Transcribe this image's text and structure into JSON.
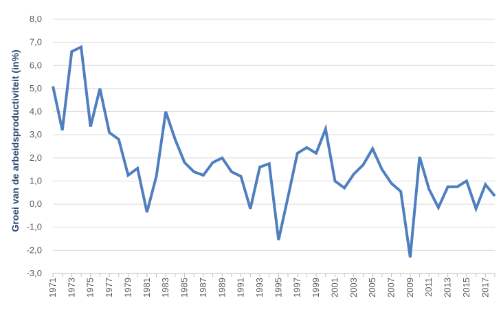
{
  "chart_data": {
    "type": "line",
    "ylabel": "Groei van de arbeidsproductiviteit (in%)",
    "xlabel": "",
    "ylim": [
      -3.0,
      8.0
    ],
    "yticks": [
      "-3,0",
      "-2,0",
      "-1,0",
      "0,0",
      "1,0",
      "2,0",
      "3,0",
      "4,0",
      "5,0",
      "6,0",
      "7,0",
      "8,0"
    ],
    "xticks": [
      "1971",
      "1973",
      "1975",
      "1977",
      "1979",
      "1981",
      "1983",
      "1985",
      "1987",
      "1989",
      "1991",
      "1993",
      "1995",
      "1997",
      "1999",
      "2001",
      "2003",
      "2005",
      "2007",
      "2009",
      "2011",
      "2013",
      "2015",
      "2017"
    ],
    "grid": true,
    "line_color": "#4f7fbf",
    "x": [
      1971,
      1972,
      1973,
      1974,
      1975,
      1976,
      1977,
      1978,
      1979,
      1980,
      1981,
      1982,
      1983,
      1984,
      1985,
      1986,
      1987,
      1988,
      1989,
      1990,
      1991,
      1992,
      1993,
      1994,
      1995,
      1996,
      1997,
      1998,
      1999,
      2000,
      2001,
      2002,
      2003,
      2004,
      2005,
      2006,
      2007,
      2008,
      2009,
      2010,
      2011,
      2012,
      2013,
      2014,
      2015,
      2016,
      2017,
      2018
    ],
    "values": [
      5.1,
      3.2,
      6.6,
      6.8,
      3.35,
      5.0,
      3.1,
      2.8,
      1.25,
      1.55,
      -0.35,
      1.2,
      4.0,
      2.8,
      1.8,
      1.4,
      1.25,
      1.8,
      2.0,
      1.4,
      1.2,
      -0.2,
      1.6,
      1.75,
      -1.55,
      0.3,
      2.2,
      2.45,
      2.2,
      3.25,
      1.0,
      0.7,
      1.3,
      1.7,
      2.4,
      1.5,
      0.9,
      0.55,
      -2.3,
      2.05,
      0.65,
      -0.15,
      0.75,
      0.75,
      1.0,
      -0.2,
      0.85,
      0.35
    ]
  }
}
